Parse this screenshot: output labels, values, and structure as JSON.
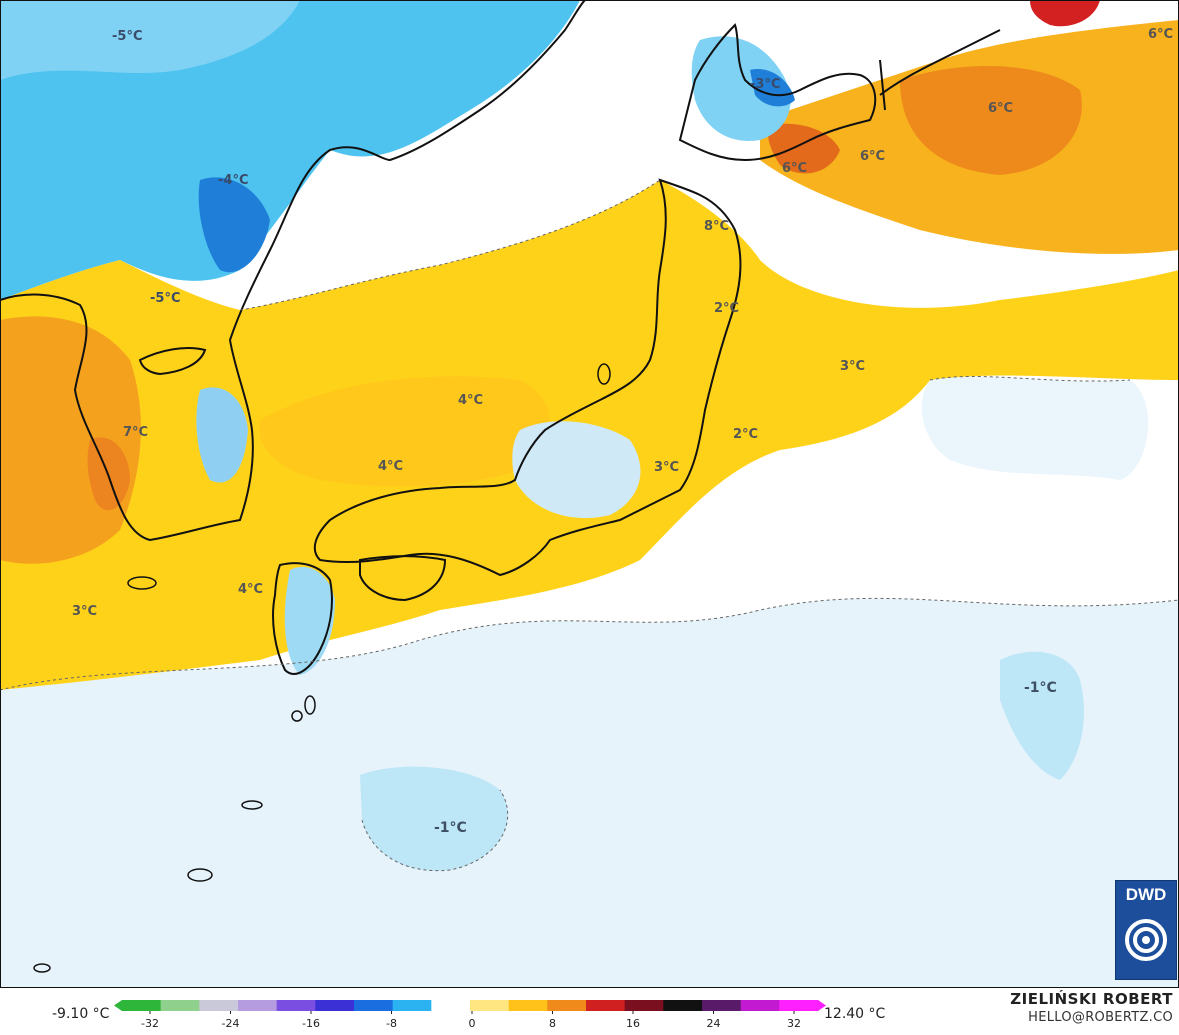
{
  "map": {
    "labels": [
      {
        "id": "t1",
        "text": "-5°C"
      },
      {
        "id": "t2",
        "text": "-4°C"
      },
      {
        "id": "t3",
        "text": "-5°C"
      },
      {
        "id": "t4",
        "text": "-3°C"
      },
      {
        "id": "t5",
        "text": "6°C"
      },
      {
        "id": "t6",
        "text": "6°C"
      },
      {
        "id": "t7",
        "text": "6°C"
      },
      {
        "id": "t8",
        "text": "6°C"
      },
      {
        "id": "t9",
        "text": "8°C"
      },
      {
        "id": "t10",
        "text": "2°C"
      },
      {
        "id": "t11",
        "text": "3°C"
      },
      {
        "id": "t12",
        "text": "4°C"
      },
      {
        "id": "t13",
        "text": "2°C"
      },
      {
        "id": "t14",
        "text": "7°C"
      },
      {
        "id": "t15",
        "text": "4°C"
      },
      {
        "id": "t16",
        "text": "3°C"
      },
      {
        "id": "t17",
        "text": "4°C"
      },
      {
        "id": "t18",
        "text": "3°C"
      },
      {
        "id": "t19",
        "text": "-1°C"
      },
      {
        "id": "t20",
        "text": "-1°C"
      }
    ]
  },
  "legend": {
    "min_label": "-9.10 °C",
    "max_label": "12.40 °C",
    "ticks": [
      "-32",
      "-24",
      "-16",
      "-8",
      "0",
      "8",
      "16",
      "24",
      "32"
    ],
    "colors": [
      "#2db63a",
      "#8fd08c",
      "#c9c9d9",
      "#b59be0",
      "#7a4ee0",
      "#3b2fd6",
      "#1a6ee0",
      "#2ab3f0",
      "#ffffff",
      "#ffe680",
      "#ffc21a",
      "#f08a1a",
      "#d02020",
      "#7a0f20",
      "#111111",
      "#5a1a6a",
      "#c21ad0",
      "#ff20ff"
    ]
  },
  "author": {
    "name": "ZIELIŃSKI ROBERT",
    "email": "HELLO@ROBERTZ.CO"
  },
  "logo": {
    "text": "DWD"
  }
}
